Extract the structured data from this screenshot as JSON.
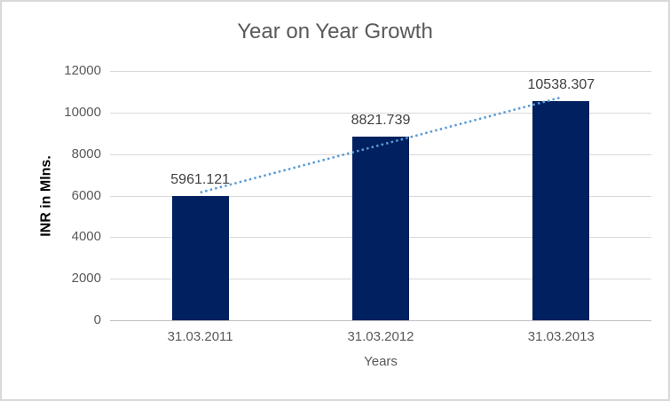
{
  "chart_data": {
    "type": "bar",
    "title": "Year on Year Growth",
    "xlabel": "Years",
    "ylabel": "INR in Mlns.",
    "categories": [
      "31.03.2011",
      "31.03.2012",
      "31.03.2013"
    ],
    "values": [
      5961.121,
      8821.739,
      10538.307
    ],
    "data_labels": [
      "5961.121",
      "8821.739",
      "10538.307"
    ],
    "ylim": [
      0,
      12000
    ],
    "yticks": [
      0,
      2000,
      4000,
      6000,
      8000,
      10000,
      12000
    ],
    "grid": true,
    "legend": false,
    "bar_color": "#002060",
    "trendline": {
      "type": "linear",
      "style": "dotted",
      "color": "#5b9bd5"
    },
    "colors": {
      "title_text": "#595959",
      "tick_text": "#595959",
      "data_label_text": "#404040",
      "gridline": "#d9d9d9",
      "axis_line": "#bfbfbf",
      "frame_border": "#d9d9d9",
      "background": "#ffffff"
    }
  }
}
